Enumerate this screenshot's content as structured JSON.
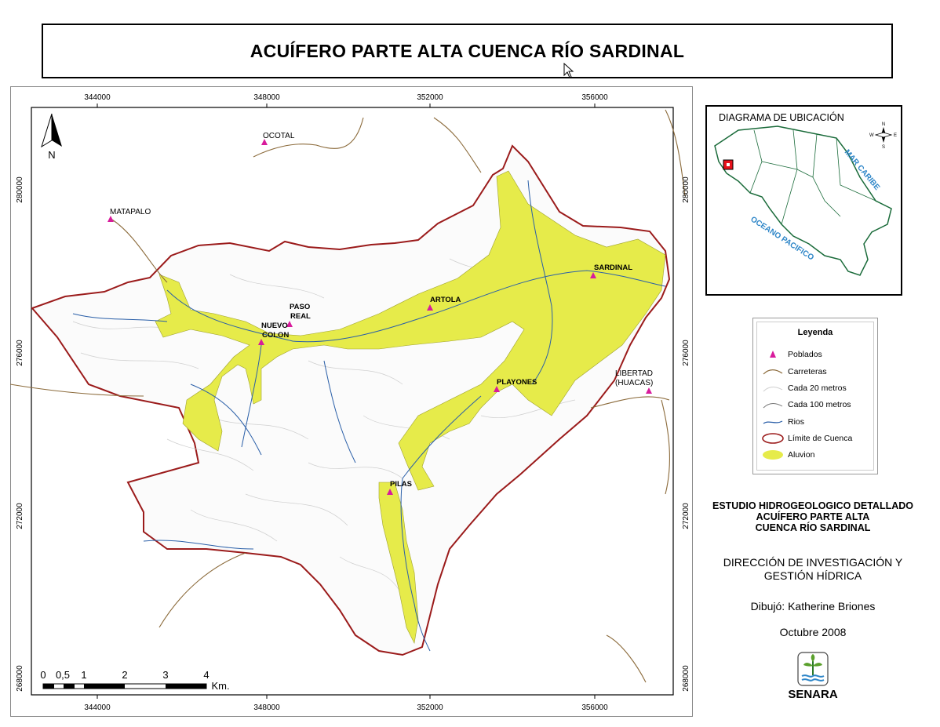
{
  "title": "ACUÍFERO  PARTE ALTA CUENCA  RÍO SARDINAL",
  "map": {
    "x_ticks": [
      "344000",
      "348000",
      "352000",
      "356000"
    ],
    "y_ticks": [
      "280000",
      "276000",
      "272000",
      "268000"
    ],
    "north": "N",
    "towns": [
      {
        "name": "OCOTAL",
        "bold": false
      },
      {
        "name": "MATAPALO",
        "bold": false
      },
      {
        "name": "PASO",
        "bold": true
      },
      {
        "name": "REAL",
        "bold": true
      },
      {
        "name": "NUEVO",
        "bold": true
      },
      {
        "name": "COLON",
        "bold": true
      },
      {
        "name": "ARTOLA",
        "bold": true
      },
      {
        "name": "SARDINAL",
        "bold": true
      },
      {
        "name": "PLAYONES",
        "bold": true
      },
      {
        "name": "LIBERTAD",
        "bold": false
      },
      {
        "name": "(HUACAS)",
        "bold": false
      },
      {
        "name": "PILAS",
        "bold": true
      }
    ],
    "scale": {
      "labels": [
        "0",
        "0,5",
        "1",
        "2",
        "3",
        "4"
      ],
      "unit": "Km."
    }
  },
  "locator": {
    "title": "DIAGRAMA DE UBICACIÓN",
    "caribbean": "MAR CARIBE",
    "pacific": "OCEANO PACIFICO",
    "compass": {
      "n": "N",
      "s": "S",
      "e": "E",
      "w": "W"
    },
    "colors": {
      "sea": "#2e86c8",
      "border": "#1a6b3a",
      "marker": "#e8111b"
    }
  },
  "legend": {
    "title": "Leyenda",
    "items": [
      {
        "label": "Poblados",
        "icon": "triangle-marker"
      },
      {
        "label": "Carreteras",
        "icon": "road-line"
      },
      {
        "label": "Cada 20 metros",
        "icon": "contour-20-line"
      },
      {
        "label": "Cada 100 metros",
        "icon": "contour-100-line"
      },
      {
        "label": "Rios",
        "icon": "river-line"
      },
      {
        "label": "Límite de Cuenca",
        "icon": "basin-ellipse"
      },
      {
        "label": "Aluvion",
        "icon": "alluvium-ellipse"
      }
    ]
  },
  "study": {
    "line1": "ESTUDIO HIDROGEOLOGICO DETALLADO",
    "line2": "ACUÍFERO PARTE ALTA",
    "line3": "CUENCA  RÍO SARDINAL"
  },
  "direction": {
    "line1": "DIRECCIÓN DE INVESTIGACIÓN Y",
    "line2": "GESTIÓN HÍDRICA"
  },
  "drawn_by": "Dibujó: Katherine Briones",
  "date": "Octubre 2008",
  "logo_text": "SENARA",
  "colors": {
    "alluvium": "#e6eb4a",
    "basin_border": "#9b1b1b",
    "town": "#d81b9c",
    "road": "#8b6a3a",
    "river": "#2a5fa8",
    "contour": "#c8c8c8"
  }
}
